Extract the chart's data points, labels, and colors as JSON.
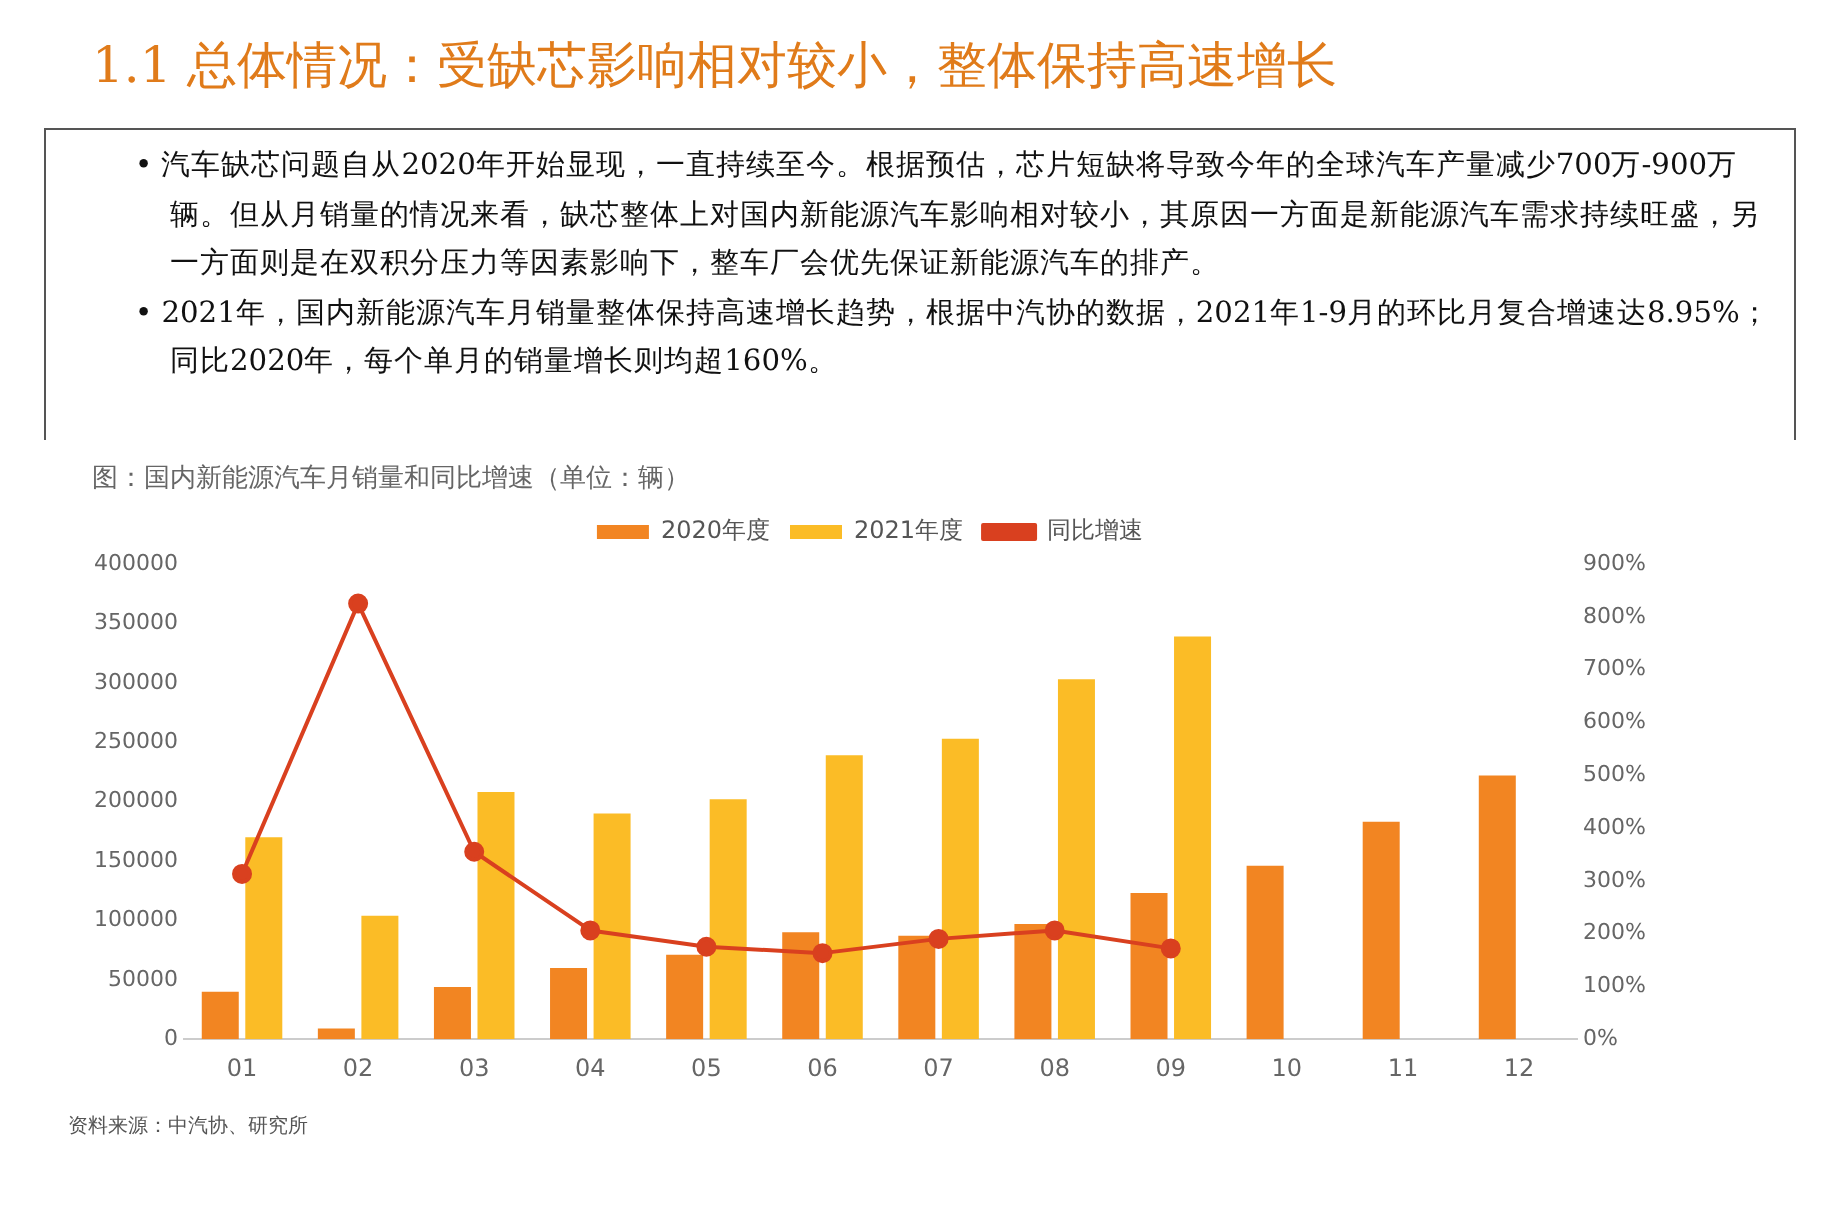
{
  "chart_data": {
    "type": "bar",
    "title": "1.1 总体情况：受缺芯影响相对较小，整体保持高速增长",
    "subtitle": "图：国内新能源汽车月销量和同比增速（单位：辆）",
    "annotations": [
      "• 汽车缺芯问题自从2020年开始显现，一直持续至今。根据预估，芯片短缺将导致今年的全球汽车产量减少700万-900万辆。但从月销量的情况来看，缺芯整体上对国内新能源汽车影响相对较小，其原因一方面是新能源汽车需求持续旺盛，另一方面则是在双积分压力等因素影响下，整车厂会优先保证新能源汽车的排产。",
      "• 2021年，国内新能源汽车月销量整体保持高速增长趋势，根据中汽协的数据，2021年1-9月的环比月复合增速达8.95%；同比2020年，每个单月的销量增长则均超160%。",
      "资料来源：中汽协、研究所"
    ],
    "categories": [
      "01",
      "02",
      "03",
      "04",
      "05",
      "06",
      "07",
      "08",
      "09",
      "10",
      "11",
      "12"
    ],
    "series": [
      {
        "name": "2020年度",
        "color": "#f28522",
        "values": [
          40000,
          9000,
          44000,
          60000,
          71000,
          90000,
          87000,
          97000,
          123000,
          146000,
          183000,
          222000
        ]
      },
      {
        "name": "2021年度",
        "color": "#fbbc26",
        "values": [
          170000,
          104000,
          208000,
          190000,
          202000,
          239000,
          253000,
          303000,
          339000,
          null,
          null,
          null
        ]
      },
      {
        "name": "同比增速",
        "type": "line",
        "axis": "y2",
        "color": "#d9401f",
        "values": [
          313,
          825,
          355,
          206,
          175,
          163,
          190,
          206,
          172,
          null,
          null,
          null
        ]
      }
    ],
    "ylim": [
      0,
      400000
    ],
    "yticks": [
      0,
      50000,
      100000,
      150000,
      200000,
      250000,
      300000,
      350000,
      400000
    ],
    "y2lim": [
      0,
      900
    ],
    "y2ticks": [
      {
        "value": 0,
        "label": "0%"
      },
      {
        "value": 100,
        "label": "100%"
      },
      {
        "value": 200,
        "label": "200%"
      },
      {
        "value": 300,
        "label": "300%"
      },
      {
        "value": 400,
        "label": "400%"
      },
      {
        "value": 500,
        "label": "500%"
      },
      {
        "value": 600,
        "label": "600%"
      },
      {
        "value": 700,
        "label": "700%"
      },
      {
        "value": 800,
        "label": "800%"
      },
      {
        "value": 900,
        "label": "900%"
      }
    ],
    "legend": "top",
    "grid": false,
    "marker": "circle",
    "line_style": "solid"
  }
}
